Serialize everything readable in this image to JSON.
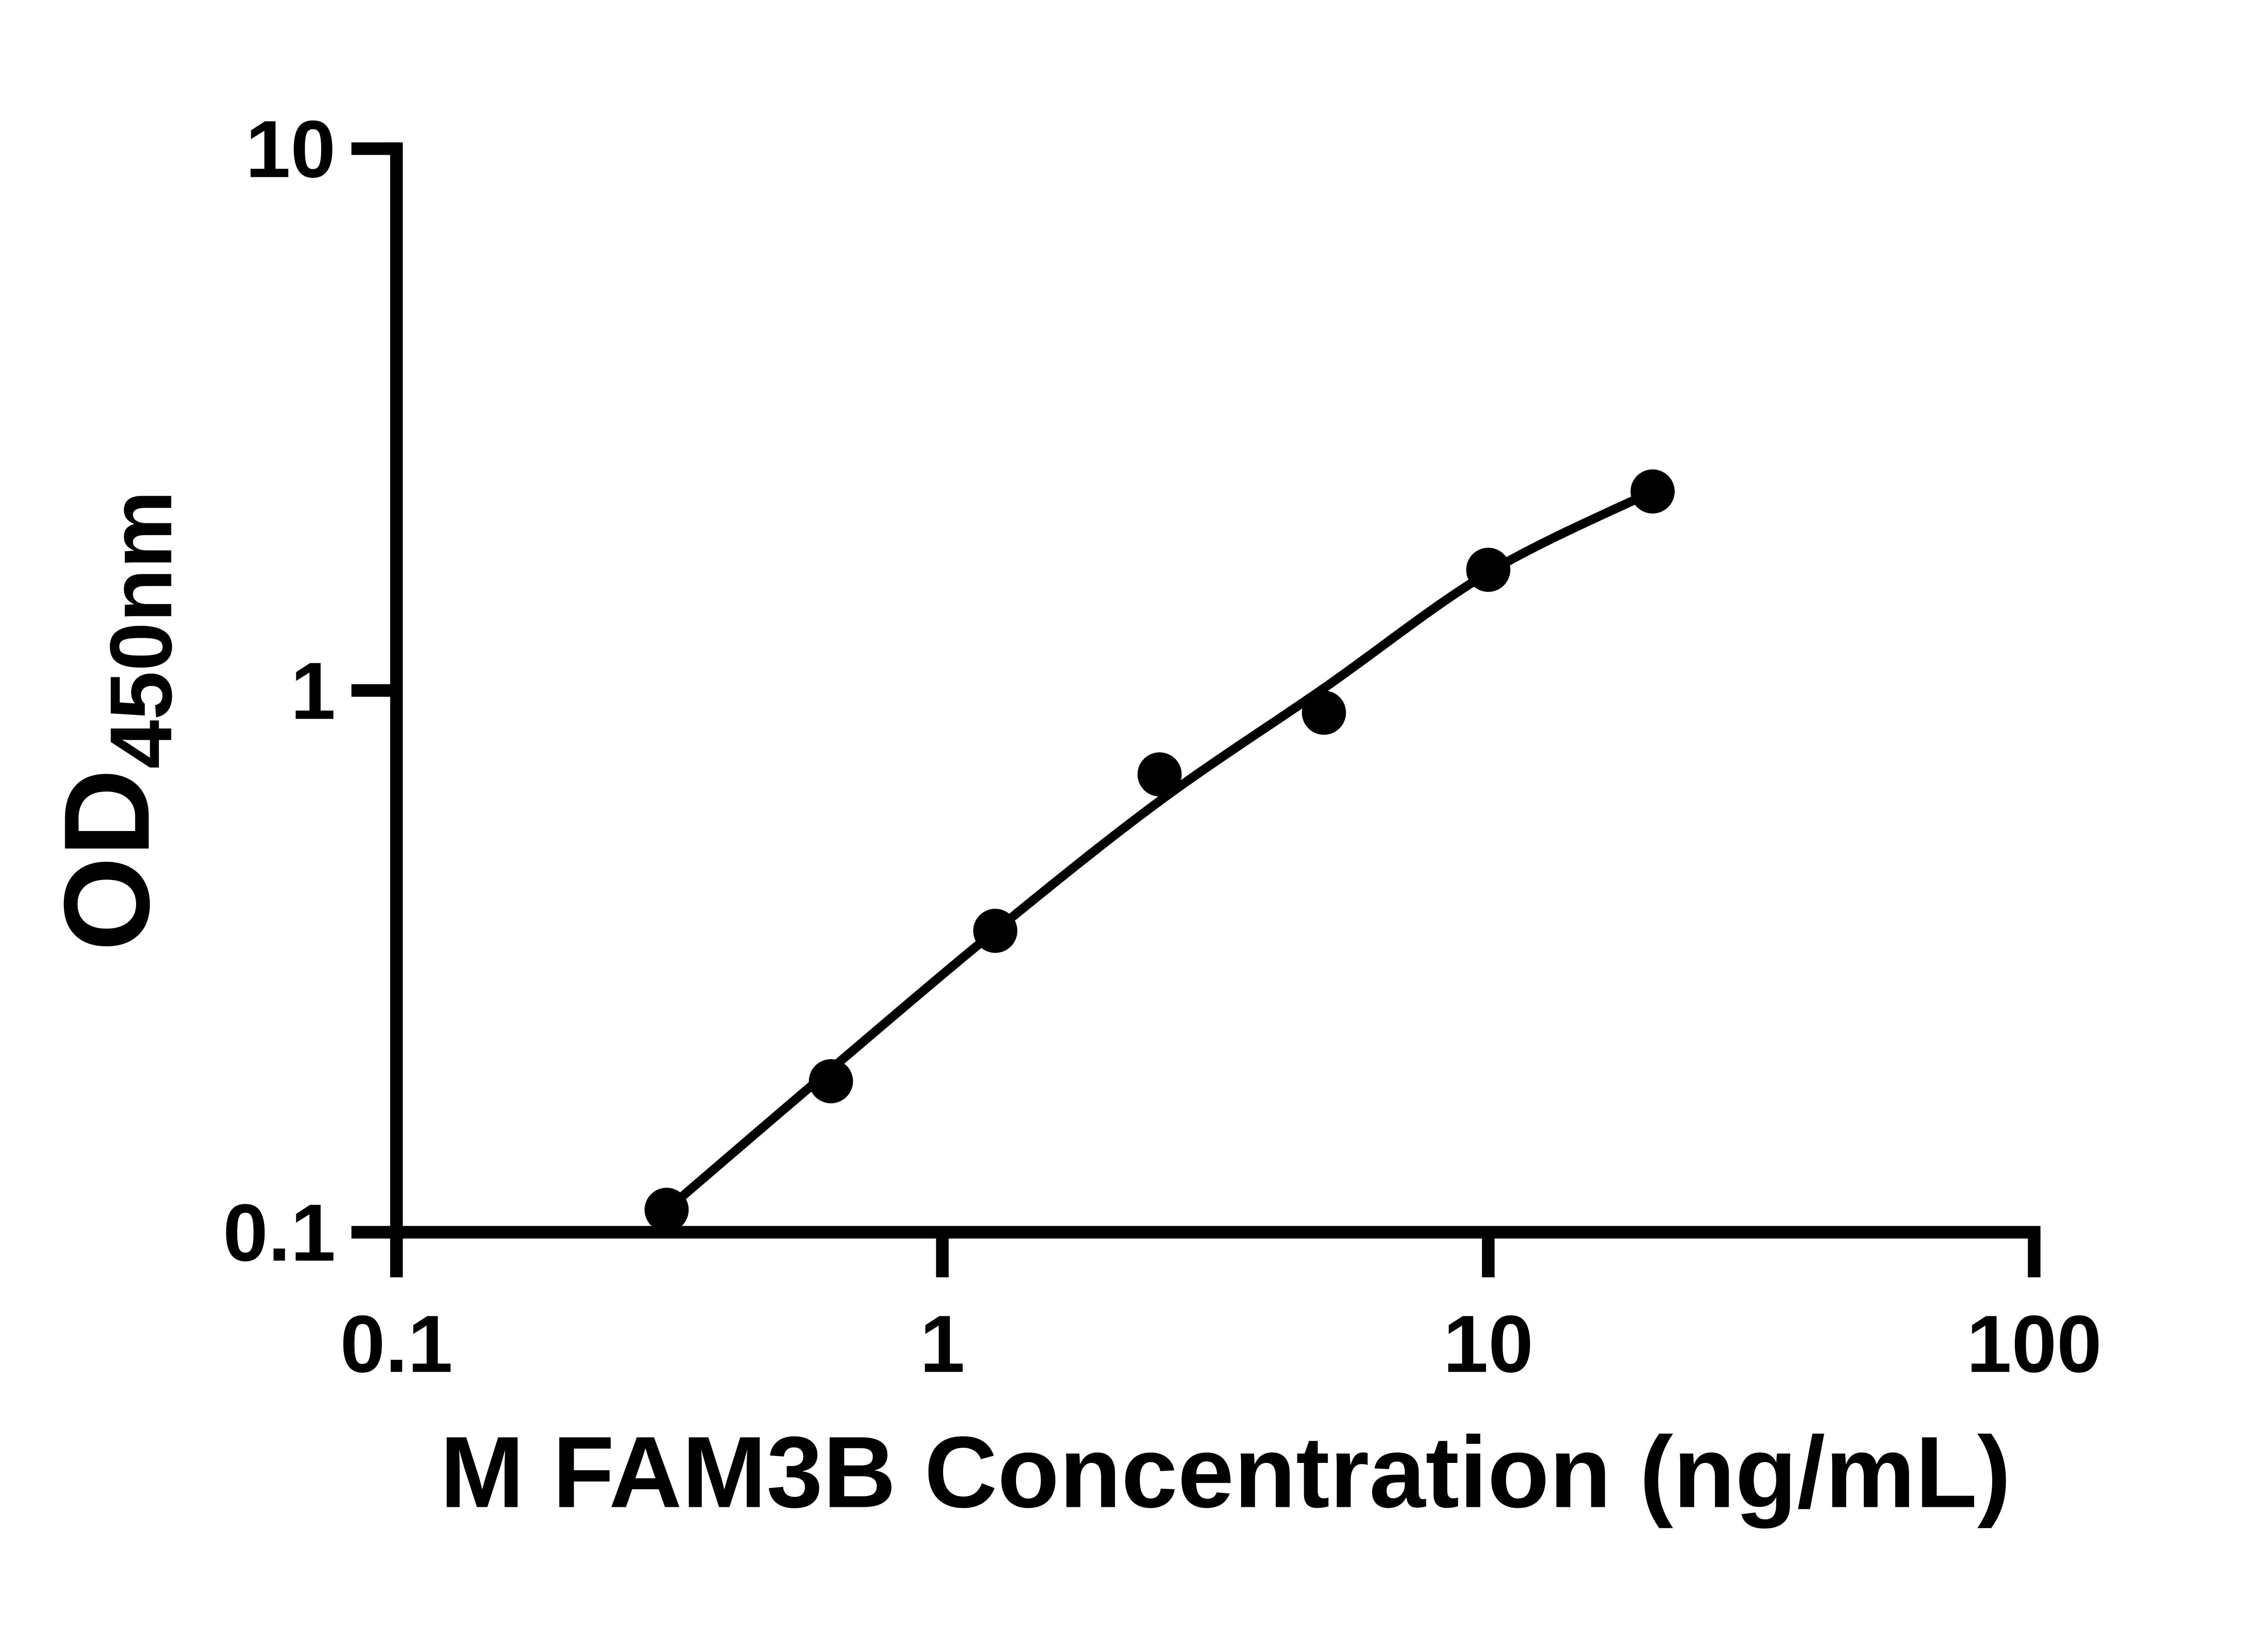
{
  "figure": {
    "background": "#ffffff",
    "ink_color": "#000000"
  },
  "chart_data": {
    "type": "scatter",
    "title": "",
    "xlabel": "M FAM3B Concentration (ng/mL)",
    "ylabel": "OD",
    "ylabel_subscript": "450nm",
    "x_scale": "log",
    "y_scale": "log",
    "xlim": [
      0.1,
      100
    ],
    "ylim": [
      0.1,
      10
    ],
    "x_ticks": [
      0.1,
      1,
      10,
      100
    ],
    "x_tick_labels": [
      "0.1",
      "1",
      "10",
      "100"
    ],
    "y_ticks": [
      0.1,
      1,
      10
    ],
    "y_tick_labels": [
      "0.1",
      "1",
      "10"
    ],
    "grid": false,
    "legend_position": "none",
    "series": [
      {
        "name": "standard-curve-points",
        "marker": "filled-circle",
        "color": "#000000",
        "points": [
          {
            "x": 0.3125,
            "y": 0.11
          },
          {
            "x": 0.625,
            "y": 0.19
          },
          {
            "x": 1.25,
            "y": 0.36
          },
          {
            "x": 2.5,
            "y": 0.7
          },
          {
            "x": 5,
            "y": 0.91
          },
          {
            "x": 10,
            "y": 1.67
          },
          {
            "x": 20,
            "y": 2.33
          }
        ]
      }
    ],
    "fit_curve": {
      "name": "four-parameter-logistic-fit",
      "color": "#000000",
      "samples": [
        {
          "x": 0.3125,
          "y": 0.11
        },
        {
          "x": 0.625,
          "y": 0.2
        },
        {
          "x": 1.25,
          "y": 0.36
        },
        {
          "x": 2.5,
          "y": 0.625
        },
        {
          "x": 5,
          "y": 1.01
        },
        {
          "x": 10,
          "y": 1.65
        },
        {
          "x": 20,
          "y": 2.33
        }
      ]
    }
  }
}
